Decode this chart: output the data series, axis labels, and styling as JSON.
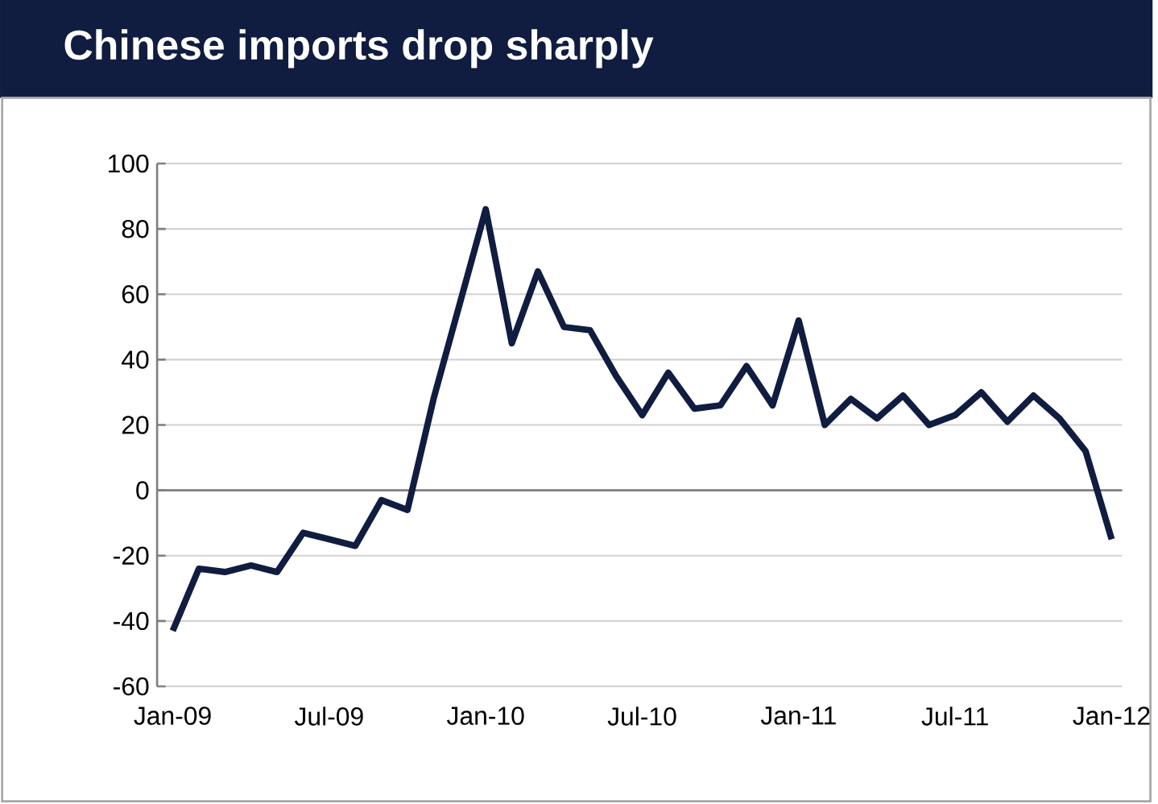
{
  "chart_data": {
    "type": "line",
    "title": "Chinese imports drop sharply",
    "categories": [
      "Jan-09",
      null,
      null,
      null,
      null,
      null,
      "Jul-09",
      null,
      null,
      null,
      null,
      null,
      "Jan-10",
      null,
      null,
      null,
      null,
      null,
      "Jul-10",
      null,
      null,
      null,
      null,
      null,
      "Jan-11",
      null,
      null,
      null,
      null,
      null,
      "Jul-11",
      null,
      null,
      null,
      null,
      null,
      "Jan-12"
    ],
    "series": [
      {
        "color": "#101c40",
        "values": [
          -43,
          -24,
          -25,
          -23,
          -25,
          -13,
          -15,
          -17,
          -3,
          -6,
          28,
          57,
          86,
          45,
          67,
          50,
          49,
          35,
          23,
          36,
          25,
          26,
          38,
          26,
          52,
          20,
          28,
          22,
          29,
          20,
          23,
          30,
          21,
          29,
          22,
          12,
          -15
        ]
      }
    ],
    "ylim": [
      -60,
      100
    ],
    "yticks": [
      -60,
      -40,
      -20,
      0,
      20,
      40,
      60,
      80,
      100
    ],
    "grid": "y",
    "marker": "none",
    "line_style": "solid"
  }
}
